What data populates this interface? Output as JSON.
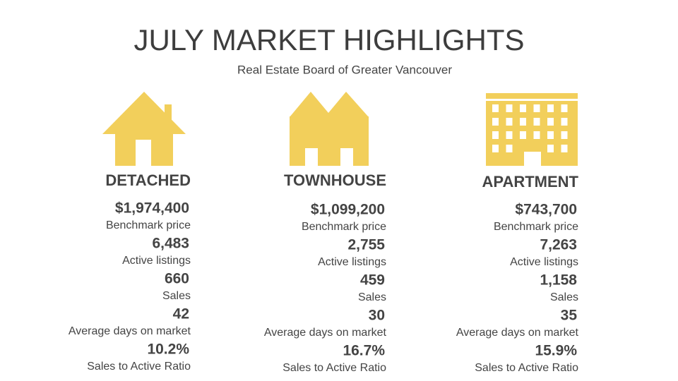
{
  "title": "JULY MARKET HIGHLIGHTS",
  "subtitle": "Real Estate Board of Greater Vancouver",
  "columns": [
    {
      "heading": "DETACHED",
      "stats": [
        {
          "value": "$1,974,400",
          "label": "Benchmark price"
        },
        {
          "value": "6,483",
          "label": "Active listings"
        },
        {
          "value": "660",
          "label": "Sales"
        },
        {
          "value": "42",
          "label": "Average days on market"
        },
        {
          "value": "10.2%",
          "label": "Sales to Active Ratio"
        }
      ]
    },
    {
      "heading": "TOWNHOUSE",
      "stats": [
        {
          "value": "$1,099,200",
          "label": "Benchmark price"
        },
        {
          "value": "2,755",
          "label": "Active listings"
        },
        {
          "value": "459",
          "label": "Sales"
        },
        {
          "value": "30",
          "label": "Average days on market"
        },
        {
          "value": "16.7%",
          "label": "Sales to Active Ratio"
        }
      ]
    },
    {
      "heading": "APARTMENT",
      "stats": [
        {
          "value": "$743,700",
          "label": "Benchmark price"
        },
        {
          "value": "7,263",
          "label": "Active listings"
        },
        {
          "value": "1,158",
          "label": "Sales"
        },
        {
          "value": "35",
          "label": "Average days on market"
        },
        {
          "value": "15.9%",
          "label": "Sales to Active Ratio"
        }
      ]
    }
  ]
}
